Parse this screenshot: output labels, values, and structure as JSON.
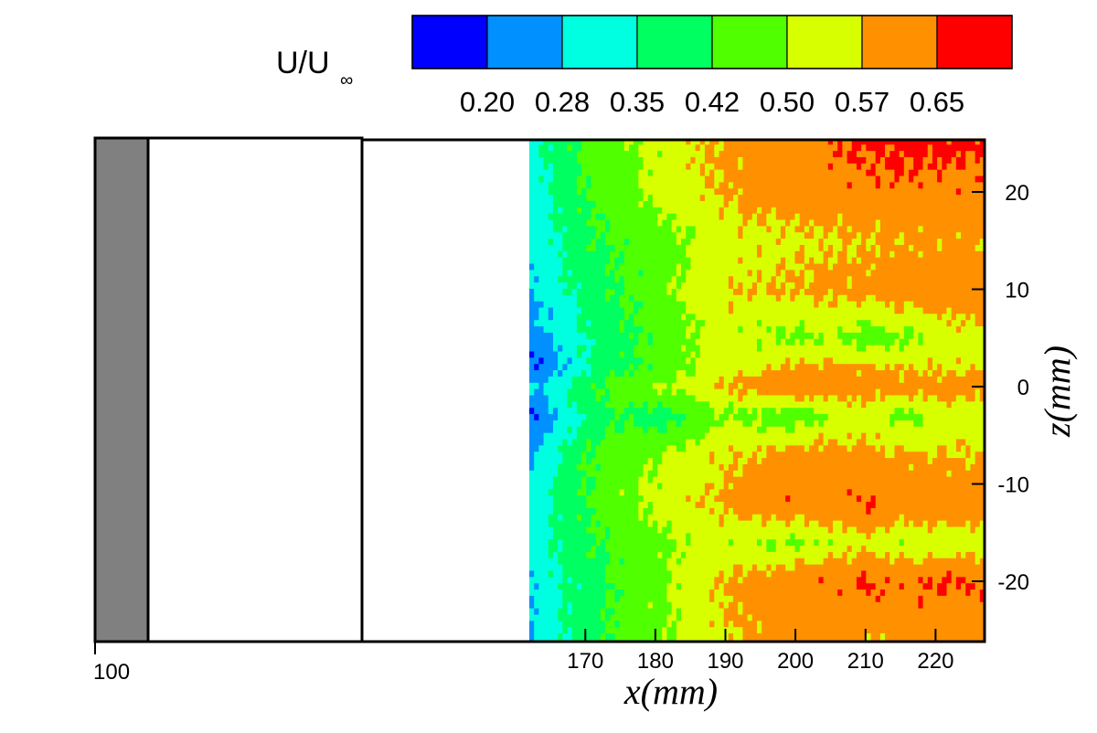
{
  "chart_data": {
    "type": "heatmap",
    "title": "",
    "colorbar": {
      "title_main": "U/U",
      "title_sub": "∞",
      "colors": [
        "#0000ff",
        "#0090ff",
        "#00ffe0",
        "#00ff60",
        "#50ff00",
        "#d8ff00",
        "#ff9000",
        "#ff0000"
      ],
      "tick_labels": [
        "0.20",
        "0.28",
        "0.35",
        "0.42",
        "0.50",
        "0.57",
        "0.65"
      ],
      "levels": [
        0.2,
        0.28,
        0.35,
        0.42,
        0.5,
        0.57,
        0.65
      ]
    },
    "x_axis": {
      "label": "x(mm)",
      "range": [
        100,
        227
      ],
      "ticks": [
        170,
        180,
        190,
        200,
        210,
        220
      ],
      "tick_labels": [
        "170",
        "180",
        "190",
        "200",
        "210",
        "220"
      ],
      "extra_tick": 100,
      "extra_tick_label": "100"
    },
    "z_axis": {
      "label": "z(mm)",
      "range": [
        -26,
        25.5
      ],
      "ticks": [
        20,
        10,
        0,
        -10,
        -20
      ],
      "tick_labels": [
        "20",
        "10",
        "0",
        "-10",
        "-20"
      ],
      "position": "right"
    },
    "field": {
      "x_range": [
        162,
        227
      ],
      "z_range": [
        -26,
        25.5
      ],
      "x_samples": [
        162,
        166,
        170,
        175,
        180,
        185,
        190,
        195,
        200,
        205,
        210,
        215,
        220,
        227
      ],
      "z_samples": [
        25,
        20,
        15,
        10,
        5,
        2,
        0,
        -3,
        -7,
        -12,
        -16,
        -20,
        -26
      ],
      "values": [
        [
          0.32,
          0.38,
          0.44,
          0.48,
          0.52,
          0.56,
          0.58,
          0.6,
          0.62,
          0.64,
          0.66,
          0.67,
          0.67,
          0.66
        ],
        [
          0.3,
          0.36,
          0.42,
          0.47,
          0.52,
          0.55,
          0.58,
          0.6,
          0.61,
          0.62,
          0.63,
          0.63,
          0.63,
          0.62
        ],
        [
          0.3,
          0.34,
          0.4,
          0.43,
          0.46,
          0.5,
          0.54,
          0.55,
          0.55,
          0.56,
          0.57,
          0.58,
          0.58,
          0.58
        ],
        [
          0.28,
          0.33,
          0.38,
          0.42,
          0.46,
          0.52,
          0.56,
          0.57,
          0.58,
          0.59,
          0.6,
          0.61,
          0.62,
          0.62
        ],
        [
          0.24,
          0.3,
          0.35,
          0.4,
          0.44,
          0.49,
          0.53,
          0.5,
          0.48,
          0.51,
          0.46,
          0.48,
          0.53,
          0.54
        ],
        [
          0.17,
          0.26,
          0.34,
          0.4,
          0.44,
          0.5,
          0.55,
          0.56,
          0.58,
          0.59,
          0.58,
          0.57,
          0.56,
          0.55
        ],
        [
          0.28,
          0.34,
          0.4,
          0.46,
          0.5,
          0.54,
          0.57,
          0.6,
          0.63,
          0.62,
          0.61,
          0.6,
          0.6,
          0.6
        ],
        [
          0.18,
          0.28,
          0.36,
          0.42,
          0.37,
          0.42,
          0.5,
          0.47,
          0.45,
          0.5,
          0.54,
          0.47,
          0.52,
          0.53
        ],
        [
          0.28,
          0.34,
          0.42,
          0.46,
          0.5,
          0.53,
          0.56,
          0.58,
          0.6,
          0.6,
          0.59,
          0.58,
          0.57,
          0.57
        ],
        [
          0.3,
          0.36,
          0.42,
          0.48,
          0.52,
          0.56,
          0.58,
          0.62,
          0.64,
          0.62,
          0.66,
          0.63,
          0.62,
          0.62
        ],
        [
          0.3,
          0.36,
          0.4,
          0.44,
          0.48,
          0.51,
          0.53,
          0.5,
          0.49,
          0.52,
          0.55,
          0.52,
          0.52,
          0.53
        ],
        [
          0.28,
          0.34,
          0.38,
          0.44,
          0.48,
          0.54,
          0.58,
          0.6,
          0.62,
          0.64,
          0.66,
          0.64,
          0.65,
          0.65
        ],
        [
          0.27,
          0.33,
          0.39,
          0.44,
          0.48,
          0.52,
          0.56,
          0.58,
          0.6,
          0.6,
          0.58,
          0.59,
          0.6,
          0.6
        ]
      ]
    },
    "model": {
      "gray_x_range": [
        100,
        105
      ],
      "white_x_range": [
        105,
        162
      ],
      "gray_color": "#808080",
      "white_color": "#ffffff"
    },
    "grid": false,
    "legend_placement": "top-right"
  }
}
